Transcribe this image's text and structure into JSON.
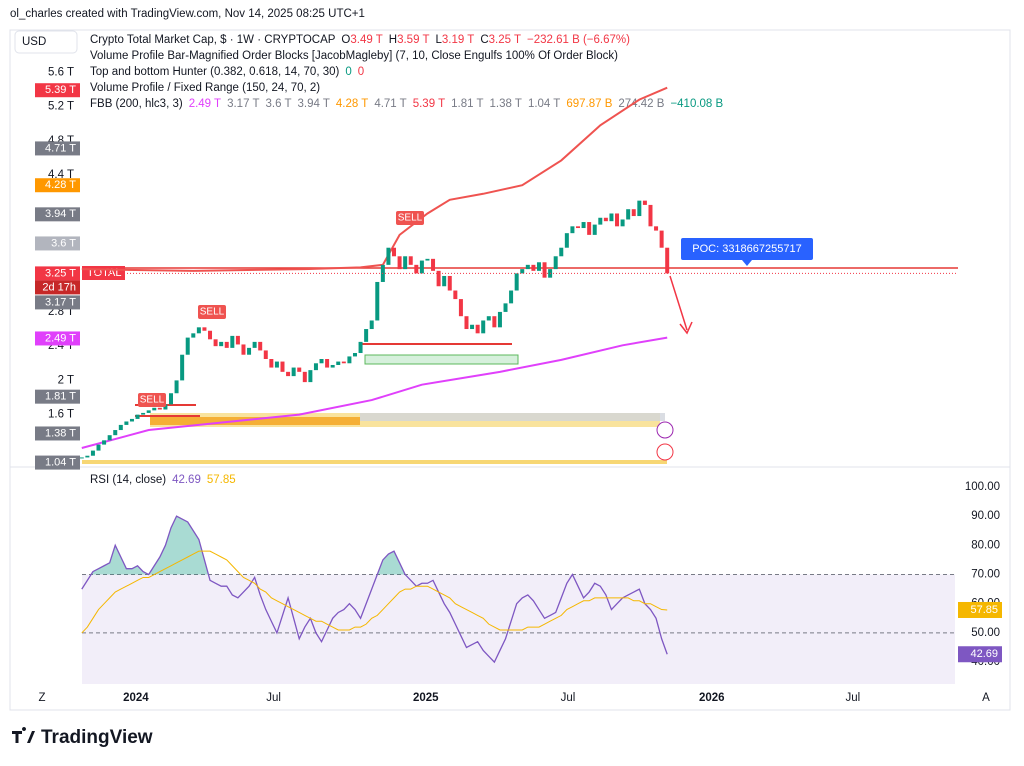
{
  "header": {
    "credit": "ol_charles created with TradingView.com, Nov 14, 2025 08:25 UTC+1",
    "currency": "USD",
    "symbol": "Crypto Total Market Cap, $ · 1W · CRYPTOCAP",
    "ohlc_keys": [
      "O",
      "H",
      "L",
      "C"
    ],
    "ohlc_values": [
      "3.49 T",
      "3.59 T",
      "3.19 T",
      "3.25 T"
    ],
    "change": "−232.61 B (−6.67%)",
    "change_color": "#f23645",
    "indicators": [
      "Volume Profile Bar-Magnified Order Blocks [JacobMagleby] (7, 10, Close Engulfs 100% Of Order Block)",
      "Top and bottom Hunter (0.382, 0.618, 14, 70, 30)",
      "Volume Profile / Fixed Range (150, 24, 70, 2)",
      "FBB (200, hlc3, 3)"
    ],
    "hunter_values": [
      {
        "text": "0",
        "color": "#089981"
      },
      {
        "text": "0",
        "color": "#f23645"
      }
    ],
    "fbb_values": [
      {
        "text": "2.49 T",
        "color": "#e040fb"
      },
      {
        "text": "3.17 T",
        "color": "#787b86"
      },
      {
        "text": "3.6 T",
        "color": "#787b86"
      },
      {
        "text": "3.94 T",
        "color": "#787b86"
      },
      {
        "text": "4.28 T",
        "color": "#ff9800"
      },
      {
        "text": "4.71 T",
        "color": "#787b86"
      },
      {
        "text": "5.39 T",
        "color": "#f23645"
      },
      {
        "text": "1.81 T",
        "color": "#787b86"
      },
      {
        "text": "1.38 T",
        "color": "#787b86"
      },
      {
        "text": "1.04 T",
        "color": "#787b86"
      },
      {
        "text": "697.87 B",
        "color": "#ff9800"
      },
      {
        "text": "274.42 B",
        "color": "#787b86"
      },
      {
        "text": "−410.08 B",
        "color": "#089981"
      }
    ]
  },
  "chart_data": [
    {
      "type": "candlestick",
      "up_color": "#089981",
      "down_color": "#f23645",
      "values": [
        1.1,
        1.12,
        1.18,
        1.25,
        1.3,
        1.36,
        1.42,
        1.48,
        1.52,
        1.55,
        1.6,
        1.62,
        1.65,
        1.68,
        1.66,
        1.72,
        1.85,
        2.0,
        2.3,
        2.5,
        2.55,
        2.62,
        2.58,
        2.48,
        2.4,
        2.45,
        2.38,
        2.52,
        2.42,
        2.3,
        2.38,
        2.45,
        2.35,
        2.25,
        2.15,
        2.22,
        2.1,
        2.05,
        2.15,
        2.1,
        1.98,
        2.12,
        2.2,
        2.25,
        2.15,
        2.18,
        2.22,
        2.2,
        2.28,
        2.32,
        2.45,
        2.6,
        2.7,
        3.15,
        3.35,
        3.55,
        3.45,
        3.3,
        3.45,
        3.35,
        3.25,
        3.4,
        3.42,
        3.28,
        3.1,
        3.22,
        3.05,
        2.95,
        2.75,
        2.6,
        2.65,
        2.55,
        2.7,
        2.75,
        2.62,
        2.8,
        2.9,
        3.05,
        3.25,
        3.3,
        3.35,
        3.28,
        3.38,
        3.2,
        3.3,
        3.45,
        3.55,
        3.72,
        3.8,
        3.78,
        3.85,
        3.7,
        3.82,
        3.9,
        3.86,
        3.95,
        3.8,
        3.88,
        4.0,
        3.92,
        4.1,
        4.05,
        3.8,
        3.75,
        3.55,
        3.25
      ],
      "xlim": [
        -0.5,
        162
      ],
      "ylim": [
        1,
        6
      ],
      "yticks": [
        {
          "value": 5.6,
          "label": "5.6 T"
        },
        {
          "value": 5.2,
          "label": "5.2 T"
        },
        {
          "value": 4.8,
          "label": "4.8 T"
        },
        {
          "value": 4.4,
          "label": "4.4 T"
        },
        {
          "value": 2.8,
          "label": "2.8 T"
        },
        {
          "value": 2.4,
          "label": "2.4 T"
        },
        {
          "value": 2,
          "label": "2 T"
        },
        {
          "value": 1.6,
          "label": "1.6 T"
        }
      ],
      "price_labels": [
        {
          "value": 5.39,
          "label": "5.39 T",
          "color": "#f23645"
        },
        {
          "value": 4.71,
          "label": "4.71 T",
          "color": "#787b86"
        },
        {
          "value": 4.28,
          "label": "4.28 T",
          "color": "#ff9800"
        },
        {
          "value": 3.94,
          "label": "3.94 T",
          "color": "#787b86"
        },
        {
          "value": 3.6,
          "label": "3.6 T",
          "color": "#b2b5be"
        },
        {
          "value": 3.25,
          "label": "3.25 T",
          "color": "#f23645"
        },
        {
          "value": 3.17,
          "label": "3.17 T",
          "color": "#787b86"
        },
        {
          "value": 2.49,
          "label": "2.49 T",
          "color": "#e040fb"
        },
        {
          "value": 1.81,
          "label": "1.81 T",
          "color": "#787b86"
        },
        {
          "value": 1.38,
          "label": "1.38 T",
          "color": "#787b86"
        },
        {
          "value": 1.04,
          "label": "1.04 T",
          "color": "#787b86"
        }
      ],
      "bands": [
        {
          "color": "#ef5350",
          "x": [
            0,
            20,
            40,
            50,
            54,
            57,
            62,
            66,
            72,
            79,
            86,
            93,
            100,
            105
          ],
          "values": [
            3.3,
            3.28,
            3.3,
            3.32,
            3.35,
            3.7,
            3.95,
            4.11,
            4.18,
            4.28,
            4.57,
            4.98,
            5.28,
            5.42
          ]
        },
        {
          "color": "#e040fb",
          "x": [
            0,
            12,
            39,
            52,
            61,
            75,
            86,
            97,
            105
          ],
          "values": [
            1.21,
            1.42,
            1.6,
            1.77,
            1.95,
            2.1,
            2.24,
            2.41,
            2.5
          ]
        }
      ],
      "countdown": "2d 17h",
      "symbol_tag": "TOTAL",
      "poc": "POC: 3318667255717",
      "annotations": [
        "SELL",
        "SELL",
        "SELL"
      ]
    },
    {
      "type": "line",
      "title": "RSI (14, close)",
      "ylim": [
        32.5,
        105.8
      ],
      "xlim": [
        -0.5,
        162
      ],
      "yticks": [
        {
          "value": 100,
          "label": "100.00"
        },
        {
          "value": 90,
          "label": "90.00"
        },
        {
          "value": 80,
          "label": "80.00"
        },
        {
          "value": 70,
          "label": "70.00"
        },
        {
          "value": 60,
          "label": "60.00"
        },
        {
          "value": 50,
          "label": "50.00"
        },
        {
          "value": 40,
          "label": "40.00"
        }
      ],
      "xticks": [
        {
          "value": 9.7,
          "label": "2024"
        },
        {
          "value": 34.4,
          "label": "Jul"
        },
        {
          "value": 61.7,
          "label": "2025"
        },
        {
          "value": 87.2,
          "label": "Jul"
        },
        {
          "value": 113,
          "label": "2026"
        },
        {
          "value": 138.3,
          "label": "Jul"
        }
      ],
      "levels": [
        70,
        50
      ],
      "series": [
        {
          "color": "#7e57c2",
          "values": [
            65,
            68,
            71,
            72,
            73,
            74,
            80,
            76,
            72,
            72,
            73,
            71,
            70,
            73,
            76,
            80,
            86,
            90,
            89,
            88,
            85,
            82,
            75,
            68,
            67,
            66,
            66,
            63,
            62,
            64,
            66,
            69,
            63,
            58,
            54,
            50,
            56,
            62,
            55,
            48,
            52,
            55,
            50,
            47,
            51,
            55,
            57,
            58,
            60,
            58,
            55,
            60,
            65,
            70,
            75,
            77,
            78,
            74,
            70,
            68,
            66,
            67,
            67,
            68,
            64,
            60,
            57,
            53,
            49,
            45,
            46,
            47,
            44,
            42,
            40,
            44,
            48,
            54,
            60,
            62,
            63,
            61,
            58,
            55,
            56,
            57,
            62,
            67,
            70,
            66,
            62,
            64,
            67,
            66,
            63,
            58,
            60,
            62,
            63,
            64,
            65,
            60,
            58,
            55,
            48,
            42.69
          ]
        },
        {
          "color": "#f5b700",
          "values": [
            50,
            52,
            55,
            58,
            60,
            62,
            64,
            65,
            66,
            67,
            68,
            69,
            69,
            70,
            71,
            72,
            73,
            74,
            75,
            76,
            77,
            78,
            78,
            78,
            77,
            76,
            75,
            73,
            71,
            69,
            68,
            67,
            65,
            64,
            62,
            61,
            60,
            59,
            58,
            57,
            56,
            55,
            54,
            54,
            53,
            52,
            51,
            51,
            51,
            52,
            52,
            53,
            55,
            56,
            58,
            60,
            62,
            64,
            65,
            65,
            66,
            66,
            66,
            65,
            64,
            63,
            62,
            60,
            59,
            58,
            57,
            56,
            55,
            53,
            52,
            51,
            51,
            51,
            51,
            51,
            52,
            52,
            52,
            53,
            54,
            55,
            56,
            58,
            59,
            60,
            61,
            61,
            62,
            62,
            62,
            62,
            62,
            62,
            62,
            61,
            61,
            60,
            60,
            59,
            58,
            57.85
          ]
        }
      ]
    }
  ],
  "footer": {
    "brand": "TradingView",
    "left_button": "Z",
    "right_button": "A"
  }
}
